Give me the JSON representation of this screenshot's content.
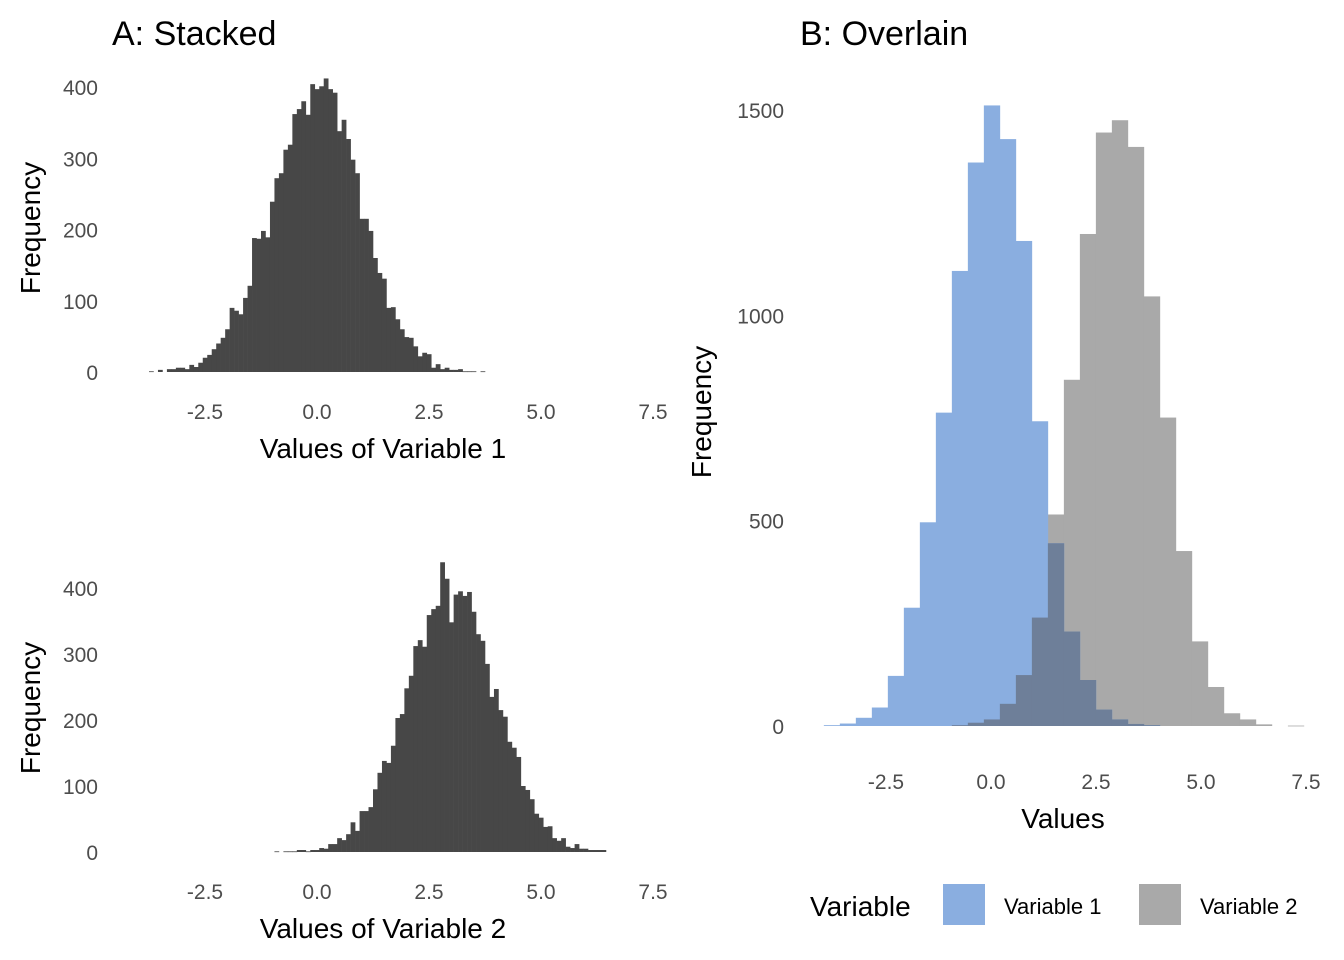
{
  "chart_data": [
    {
      "type": "histogram",
      "title": "A: Stacked",
      "xlabel": "Values of Variable 1",
      "ylabel": "Frequency",
      "x_ticks": [
        -2.5,
        0.0,
        2.5,
        5.0,
        7.5
      ],
      "x_tick_labels": [
        "-2.5",
        "0.0",
        "2.5",
        "5.0",
        "7.5"
      ],
      "y_ticks": [
        0,
        100,
        200,
        300,
        400
      ],
      "y_tick_labels": [
        "0",
        "100",
        "200",
        "300",
        "400"
      ],
      "bin_start": -3.75,
      "bin_width": 0.1,
      "counts": [
        1,
        0,
        3,
        0,
        4,
        4,
        6,
        6,
        4,
        10,
        7,
        13,
        20,
        24,
        32,
        40,
        48,
        60,
        90,
        86,
        81,
        104,
        121,
        188,
        187,
        198,
        189,
        239,
        272,
        279,
        312,
        319,
        362,
        369,
        380,
        361,
        404,
        397,
        401,
        412,
        397,
        392,
        338,
        354,
        327,
        298,
        279,
        215,
        215,
        198,
        160,
        139,
        131,
        90,
        91,
        74,
        60,
        49,
        48,
        36,
        22,
        27,
        25,
        6,
        11,
        4,
        6,
        3,
        3,
        4,
        1,
        1,
        1,
        0,
        1
      ],
      "color": "#474747",
      "grid": false
    },
    {
      "type": "histogram",
      "xlabel": "Values of Variable 2",
      "ylabel": "Frequency",
      "x_ticks": [
        -2.5,
        0.0,
        2.5,
        5.0,
        7.5
      ],
      "x_tick_labels": [
        "-2.5",
        "0.0",
        "2.5",
        "5.0",
        "7.5"
      ],
      "y_ticks": [
        0,
        100,
        200,
        300,
        400
      ],
      "y_tick_labels": [
        "0",
        "100",
        "200",
        "300",
        "400"
      ],
      "bin_start": -0.95,
      "bin_width": 0.1,
      "counts": [
        1,
        0,
        1,
        1,
        1,
        3,
        3,
        1,
        3,
        3,
        6,
        5,
        12,
        12,
        21,
        18,
        27,
        45,
        32,
        62,
        62,
        68,
        95,
        120,
        138,
        135,
        161,
        203,
        209,
        248,
        267,
        312,
        321,
        311,
        359,
        368,
        373,
        439,
        414,
        348,
        390,
        395,
        388,
        394,
        364,
        330,
        320,
        285,
        235,
        247,
        215,
        205,
        167,
        158,
        144,
        100,
        94,
        80,
        58,
        52,
        38,
        39,
        21,
        17,
        21,
        8,
        6,
        12,
        5,
        5,
        3,
        3,
        3,
        3
      ],
      "color": "#474747",
      "grid": false
    },
    {
      "type": "histogram",
      "title": "B: Overlain",
      "xlabel": "Values",
      "ylabel": "Frequency",
      "x_ticks": [
        -2.5,
        0.0,
        2.5,
        5.0,
        7.5
      ],
      "x_tick_labels": [
        "-2.5",
        "0.0",
        "2.5",
        "5.0",
        "7.5"
      ],
      "y_ticks": [
        0,
        500,
        1000,
        1500
      ],
      "y_tick_labels": [
        "0",
        "500",
        "1000",
        "1500"
      ],
      "bin_start": -3.98,
      "bin_width": 0.381,
      "series": [
        {
          "name": "Variable 1",
          "color": "#8aaee0",
          "counts": [
            2,
            6,
            20,
            45,
            122,
            288,
            496,
            763,
            1108,
            1372,
            1511,
            1429,
            1181,
            742,
            445,
            230,
            112,
            40,
            16,
            5,
            2,
            0,
            0,
            0,
            0,
            0,
            0,
            0,
            0,
            0
          ]
        },
        {
          "name": "Variable 2",
          "color": "#a9a9a9",
          "counts": [
            0,
            0,
            0,
            0,
            0,
            0,
            0,
            0,
            2,
            8,
            16,
            54,
            124,
            264,
            515,
            843,
            1198,
            1445,
            1475,
            1410,
            1046,
            751,
            426,
            206,
            95,
            31,
            16,
            4,
            0,
            1
          ]
        }
      ],
      "overlap_color": "#6e7f99",
      "legend": {
        "title": "Variable",
        "position": "bottom"
      },
      "grid": false
    }
  ]
}
